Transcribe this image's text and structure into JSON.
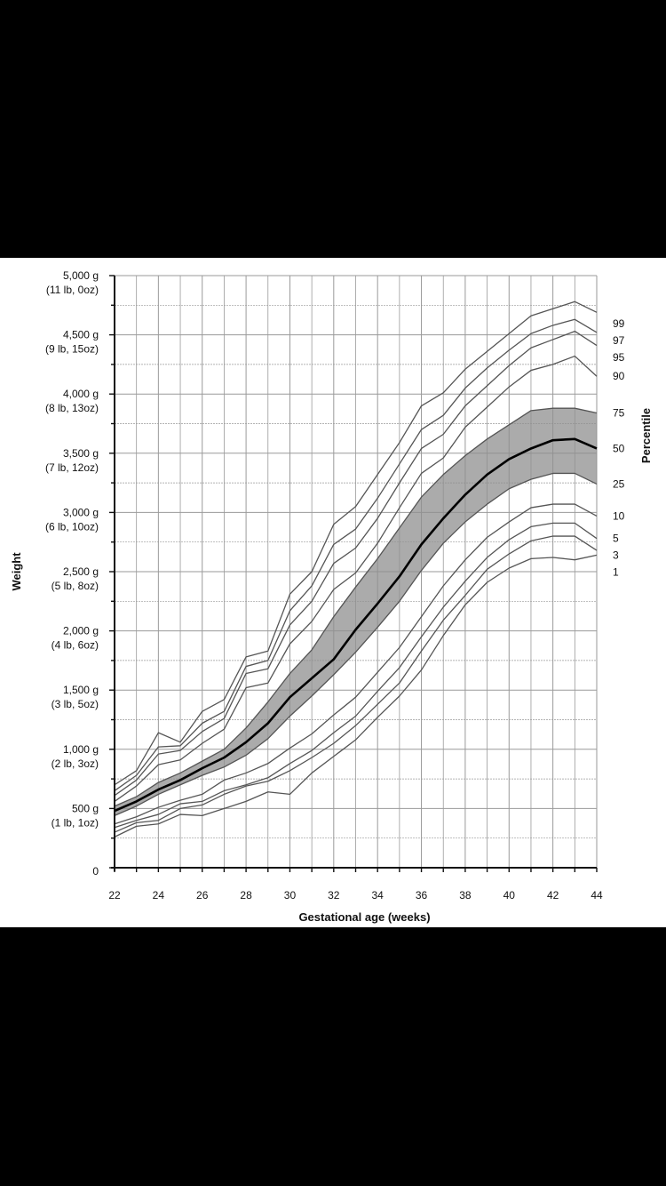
{
  "chart_data": {
    "type": "line",
    "title": "",
    "xlabel": "Gestational age (weeks)",
    "ylabel": "Weight",
    "legend_title": "Percentile",
    "xlim": [
      22,
      44
    ],
    "ylim": [
      0,
      5000
    ],
    "x_ticks": [
      22,
      24,
      26,
      28,
      30,
      32,
      34,
      36,
      38,
      40,
      42,
      44
    ],
    "y_ticks": [
      {
        "value": 5000,
        "grams": "5,000 g",
        "pounds": "(11 lb, 0oz)"
      },
      {
        "value": 4500,
        "grams": "4,500 g",
        "pounds": "(9 lb, 15oz)"
      },
      {
        "value": 4000,
        "grams": "4,000 g",
        "pounds": "(8 lb, 13oz)"
      },
      {
        "value": 3500,
        "grams": "3,500 g",
        "pounds": "(7 lb, 12oz)"
      },
      {
        "value": 3000,
        "grams": "3,000 g",
        "pounds": "(6 lb, 10oz)"
      },
      {
        "value": 2500,
        "grams": "2,500 g",
        "pounds": "(5 lb, 8oz)"
      },
      {
        "value": 2000,
        "grams": "2,000 g",
        "pounds": "(4 lb, 6oz)"
      },
      {
        "value": 1500,
        "grams": "1,500 g",
        "pounds": "(3 lb, 5oz)"
      },
      {
        "value": 1000,
        "grams": "1,000 g",
        "pounds": "(2 lb, 3oz)"
      },
      {
        "value": 500,
        "grams": "500 g",
        "pounds": "(1 lb, 1oz)"
      },
      {
        "value": 0,
        "grams": "0",
        "pounds": ""
      }
    ],
    "x": [
      22,
      23,
      24,
      25,
      26,
      27,
      28,
      29,
      30,
      31,
      32,
      33,
      34,
      35,
      36,
      37,
      38,
      39,
      40,
      41,
      42,
      43,
      44
    ],
    "shaded_band": {
      "lower": "25",
      "upper": "75"
    },
    "series": [
      {
        "name": "99",
        "values": [
          700,
          820,
          1140,
          1060,
          1320,
          1420,
          1780,
          1830,
          2310,
          2500,
          2900,
          3050,
          3320,
          3590,
          3900,
          4010,
          4210,
          4360,
          4510,
          4660,
          4720,
          4780,
          4690
        ]
      },
      {
        "name": "97",
        "values": [
          650,
          780,
          1020,
          1030,
          1220,
          1320,
          1700,
          1750,
          2170,
          2380,
          2730,
          2860,
          3120,
          3410,
          3700,
          3820,
          4050,
          4220,
          4370,
          4510,
          4580,
          4630,
          4520
        ]
      },
      {
        "name": "95",
        "values": [
          610,
          740,
          960,
          990,
          1150,
          1260,
          1640,
          1680,
          2050,
          2250,
          2570,
          2700,
          2950,
          3250,
          3540,
          3660,
          3900,
          4070,
          4240,
          4390,
          4460,
          4530,
          4410
        ]
      },
      {
        "name": "90",
        "values": [
          560,
          690,
          870,
          910,
          1050,
          1170,
          1520,
          1560,
          1890,
          2080,
          2350,
          2490,
          2740,
          3040,
          3330,
          3460,
          3720,
          3890,
          4060,
          4200,
          4250,
          4320,
          4150
        ]
      },
      {
        "name": "75",
        "values": [
          520,
          600,
          720,
          800,
          900,
          1000,
          1180,
          1400,
          1640,
          1840,
          2120,
          2370,
          2610,
          2870,
          3130,
          3320,
          3480,
          3620,
          3740,
          3860,
          3880,
          3880,
          3840
        ]
      },
      {
        "name": "50",
        "values": [
          480,
          560,
          660,
          740,
          840,
          930,
          1060,
          1220,
          1440,
          1600,
          1760,
          2010,
          2230,
          2460,
          2730,
          2950,
          3150,
          3320,
          3450,
          3540,
          3610,
          3620,
          3540
        ]
      },
      {
        "name": "25",
        "values": [
          440,
          520,
          620,
          700,
          780,
          850,
          950,
          1090,
          1280,
          1450,
          1630,
          1820,
          2030,
          2250,
          2510,
          2740,
          2920,
          3070,
          3200,
          3280,
          3330,
          3330,
          3240
        ]
      },
      {
        "name": "10",
        "values": [
          370,
          430,
          510,
          570,
          620,
          740,
          800,
          880,
          1010,
          1130,
          1290,
          1440,
          1650,
          1860,
          2120,
          2380,
          2600,
          2790,
          2920,
          3040,
          3070,
          3070,
          2970
        ]
      },
      {
        "name": "5",
        "values": [
          340,
          400,
          450,
          540,
          560,
          650,
          700,
          760,
          880,
          990,
          1140,
          1280,
          1490,
          1690,
          1950,
          2200,
          2420,
          2620,
          2770,
          2880,
          2910,
          2910,
          2780
        ]
      },
      {
        "name": "3",
        "values": [
          300,
          380,
          400,
          500,
          530,
          620,
          690,
          730,
          820,
          930,
          1050,
          1200,
          1380,
          1560,
          1830,
          2090,
          2300,
          2520,
          2650,
          2760,
          2800,
          2800,
          2680
        ]
      },
      {
        "name": "1",
        "values": [
          260,
          350,
          370,
          450,
          440,
          500,
          560,
          640,
          620,
          800,
          940,
          1080,
          1270,
          1450,
          1670,
          1960,
          2220,
          2410,
          2530,
          2610,
          2620,
          2600,
          2640
        ]
      }
    ]
  }
}
